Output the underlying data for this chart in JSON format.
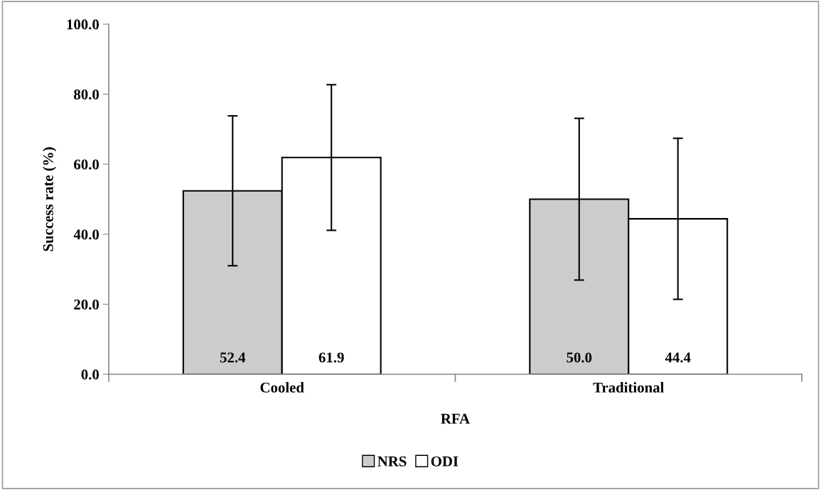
{
  "chart_data": {
    "type": "bar",
    "xlabel": "RFA",
    "ylabel": "Success rate (%)",
    "categories": [
      "Cooled",
      "Traditional"
    ],
    "series": [
      {
        "name": "NRS",
        "color": "#cccccc",
        "values": [
          52.4,
          50.0
        ],
        "value_labels": [
          "52.4",
          "50.0"
        ],
        "errors": [
          21.4,
          23.1
        ]
      },
      {
        "name": "ODI",
        "color": "#ffffff",
        "values": [
          61.9,
          44.4
        ],
        "value_labels": [
          "61.9",
          "44.4"
        ],
        "errors": [
          20.8,
          23.0
        ]
      }
    ],
    "ylim": [
      0,
      100
    ],
    "yticks": [
      {
        "value": 0,
        "label": "0.0"
      },
      {
        "value": 20,
        "label": "20.0"
      },
      {
        "value": 40,
        "label": "40.0"
      },
      {
        "value": 60,
        "label": "60.0"
      },
      {
        "value": 80,
        "label": "80.0"
      },
      {
        "value": 100,
        "label": "100.0"
      }
    ],
    "legend": "bottom",
    "grid": false
  }
}
